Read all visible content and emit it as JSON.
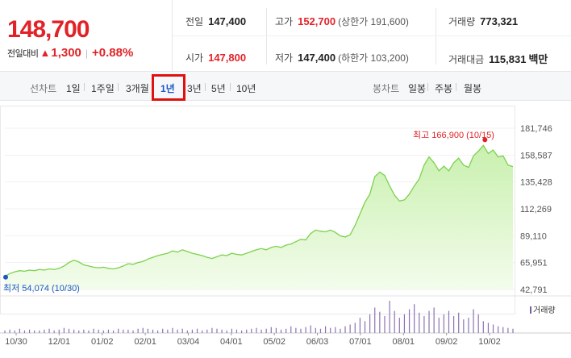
{
  "summary": {
    "price": "148,700",
    "change_label": "전일대비",
    "change_arrow": "▲",
    "change_amount": "1,300",
    "change_percent": "+0.88%",
    "prev_close_label": "전일",
    "prev_close": "147,400",
    "high_label": "고가",
    "high": "152,700",
    "upper_limit_text": "(상한가 191,600)",
    "volume_label": "거래량",
    "volume": "773,321",
    "open_label": "시가",
    "open": "147,800",
    "low_label": "저가",
    "low": "147,400",
    "lower_limit_text": "(하한가 103,200)",
    "trade_value_label": "거래대금",
    "trade_value": "115,831",
    "trade_value_unit": "백만",
    "colors": {
      "up": "#e12328",
      "down": "#1f56c7",
      "line": "#7cd14e"
    }
  },
  "tabs": {
    "line_chart_label": "선차트",
    "periods": [
      "1일",
      "1주일",
      "3개월",
      "1년",
      "3년",
      "5년",
      "10년"
    ],
    "active_period": "1년",
    "candle_chart_label": "봉차트",
    "candles": [
      "일봉",
      "주봉",
      "월봉"
    ]
  },
  "chart_data": {
    "type": "area",
    "y_ticks": [
      "181,746",
      "158,587",
      "135,428",
      "112,269",
      "89,110",
      "65,951",
      "42,791"
    ],
    "ylim": [
      42791,
      181746
    ],
    "x_ticks": [
      "10/30",
      "12/01",
      "01/02",
      "02/01",
      "03/04",
      "04/01",
      "05/02",
      "06/03",
      "07/01",
      "08/01",
      "09/02",
      "10/02"
    ],
    "high_annotation": "최고 166,900 (10/15)",
    "low_annotation": "최저 54,074 (10/30)",
    "volume_legend": "거래량",
    "series": [
      {
        "values": [
          54074,
          56500,
          58000,
          59000,
          58500,
          59500,
          59000,
          60000,
          59500,
          60500,
          60000,
          61000,
          63000,
          66000,
          68000,
          66500,
          64000,
          63000,
          62000,
          61500,
          62000,
          61000,
          60500,
          61500,
          63000,
          65000,
          64500,
          66000,
          67000,
          69000,
          70500,
          72000,
          73000,
          74000,
          76000,
          75000,
          77000,
          75500,
          74000,
          73000,
          72000,
          70500,
          69500,
          71000,
          72500,
          72000,
          74000,
          73000,
          72500,
          74000,
          75500,
          77000,
          78000,
          77000,
          79000,
          80000,
          79000,
          81000,
          82000,
          84000,
          86000,
          85500,
          91000,
          94000,
          93000,
          92500,
          94000,
          92000,
          89000,
          88000,
          90000,
          98000,
          108000,
          118000,
          125000,
          140000,
          144000,
          141000,
          132000,
          124000,
          119000,
          120000,
          125000,
          132000,
          138000,
          150000,
          157000,
          152000,
          145000,
          149000,
          145000,
          152000,
          156000,
          150000,
          148000,
          158000,
          162000,
          166900,
          160000,
          163000,
          157000,
          158000,
          150000,
          148700
        ]
      }
    ],
    "volume": [
      3,
      4,
      3,
      5,
      3,
      4,
      3,
      3,
      4,
      5,
      3,
      4,
      6,
      5,
      4,
      3,
      4,
      3,
      5,
      4,
      3,
      4,
      3,
      5,
      4,
      4,
      3,
      5,
      6,
      5,
      4,
      3,
      5,
      4,
      6,
      4,
      5,
      3,
      4,
      5,
      3,
      4,
      6,
      5,
      4,
      3,
      5,
      4,
      3,
      4,
      5,
      6,
      4,
      5,
      7,
      6,
      4,
      5,
      8,
      6,
      5,
      7,
      9,
      6,
      5,
      8,
      6,
      7,
      5,
      8,
      10,
      12,
      18,
      14,
      22,
      30,
      25,
      20,
      38,
      26,
      18,
      22,
      28,
      34,
      24,
      20,
      26,
      30,
      18,
      22,
      26,
      20,
      24,
      16,
      18,
      28,
      22,
      14,
      12,
      10,
      8,
      7,
      6,
      5
    ]
  }
}
